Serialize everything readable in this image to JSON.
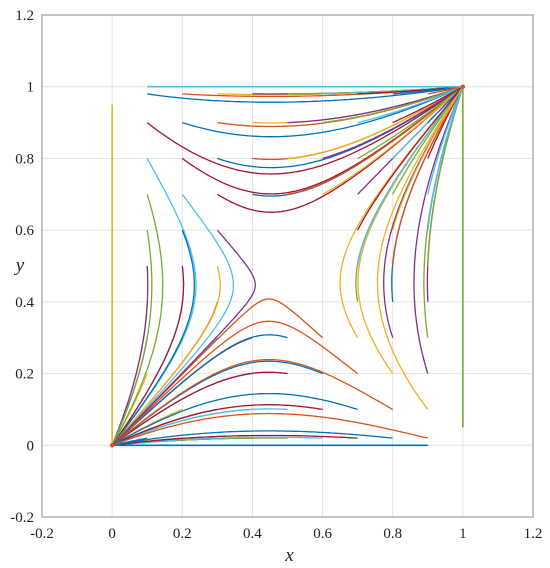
{
  "chart_data": {
    "type": "line",
    "title": "",
    "xlabel": "x",
    "ylabel": "y",
    "xlim": [
      -0.2,
      1.2
    ],
    "ylim": [
      -0.2,
      1.2
    ],
    "xticks": [
      -0.2,
      0,
      0.2,
      0.4,
      0.6,
      0.8,
      1,
      1.2
    ],
    "yticks": [
      -0.2,
      0,
      0.2,
      0.4,
      0.6,
      0.8,
      1,
      1.2
    ],
    "xtick_labels": [
      "-0.2",
      "0",
      "0.2",
      "0.4",
      "0.6",
      "0.8",
      "1",
      "1.2"
    ],
    "ytick_labels": [
      "-0.2",
      "0",
      "0.2",
      "0.4",
      "0.6",
      "0.8",
      "1",
      "1.2"
    ],
    "grid": true,
    "legend": "none",
    "description": "Phase portrait trajectories converging to (0,0) and (1,1) with a saddle near (0.45, 0.45)",
    "equilibria": [
      [
        0,
        0
      ],
      [
        1,
        1
      ],
      [
        0.45,
        0.45
      ]
    ],
    "colors": [
      "#0072BD",
      "#D95319",
      "#EDB120",
      "#7E2F8E",
      "#77AC30",
      "#4DBEEE",
      "#A2142F"
    ],
    "boundary_segments": [
      {
        "x": [
          0.1,
          1.0
        ],
        "y": [
          1.0,
          1.0
        ]
      },
      {
        "x": [
          0.0,
          0.9
        ],
        "y": [
          0.0,
          0.0
        ]
      },
      {
        "x": [
          0.0,
          0.0
        ],
        "y": [
          0.0,
          0.95
        ]
      },
      {
        "x": [
          1.0,
          1.0
        ],
        "y": [
          0.05,
          1.0
        ]
      }
    ]
  }
}
